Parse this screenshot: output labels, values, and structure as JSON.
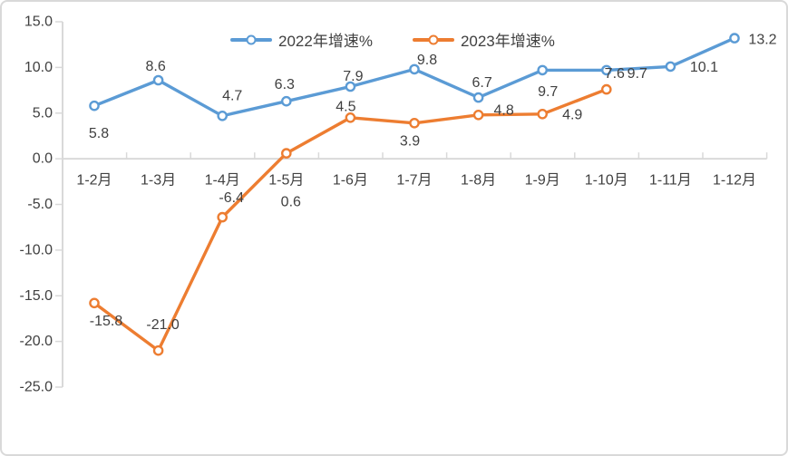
{
  "window": {
    "background": "#ffffff",
    "frame_border_color": "#d9d9d9"
  },
  "chart_data": {
    "type": "line",
    "title": "",
    "xlabel": "",
    "ylabel": "",
    "categories": [
      "1-2月",
      "1-3月",
      "1-4月",
      "1-5月",
      "1-6月",
      "1-7月",
      "1-8月",
      "1-9月",
      "1-10月",
      "1-11月",
      "1-12月"
    ],
    "series": [
      {
        "name": "2022年增速%",
        "color": "#5B9BD5",
        "values": [
          5.8,
          8.6,
          4.7,
          6.3,
          7.9,
          9.8,
          6.7,
          9.7,
          9.7,
          10.1,
          13.2
        ],
        "label_offsets": [
          [
            5,
            31
          ],
          [
            -3,
            -15
          ],
          [
            11,
            -22
          ],
          [
            -2,
            -18
          ],
          [
            3,
            -11
          ],
          [
            14,
            -10
          ],
          [
            4,
            -16
          ],
          [
            6,
            24
          ],
          [
            34,
            4
          ],
          [
            37,
            1
          ],
          [
            31,
            2
          ]
        ]
      },
      {
        "name": "2023年增速%",
        "color": "#ED7D31",
        "values": [
          -15.8,
          -21.0,
          -6.4,
          0.6,
          4.5,
          3.9,
          4.8,
          4.9,
          7.6,
          null,
          null
        ],
        "label_offsets": [
          [
            13,
            20
          ],
          [
            5,
            -28
          ],
          [
            10,
            -21
          ],
          [
            5,
            54
          ],
          [
            -5,
            -12
          ],
          [
            -5,
            20
          ],
          [
            28,
            -5
          ],
          [
            33,
            1
          ],
          [
            9,
            -17
          ]
        ]
      }
    ],
    "ylim": [
      -25,
      15
    ],
    "ytick_step": 5,
    "ytick_labels": [
      "15.0",
      "10.0",
      "5.0",
      "0.0",
      "-5.0",
      "-10.0",
      "-15.0",
      "-20.0",
      "-25.0"
    ],
    "grid": false,
    "legend_position": "top-center",
    "marker": "open-circle",
    "axis_color": "#d9d9d9",
    "text_color": "#404040",
    "label_decimals": 1
  }
}
